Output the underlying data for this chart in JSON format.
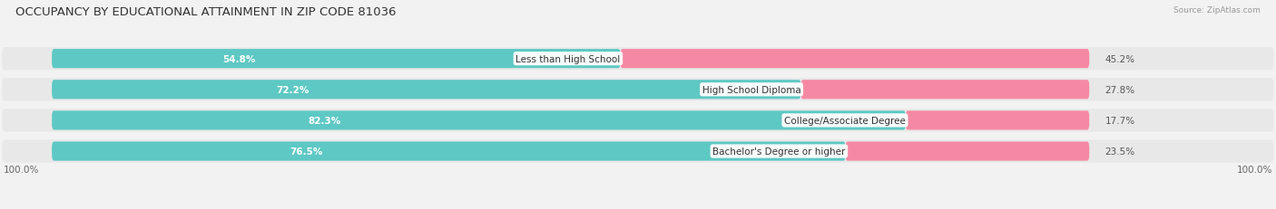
{
  "title": "OCCUPANCY BY EDUCATIONAL ATTAINMENT IN ZIP CODE 81036",
  "source": "Source: ZipAtlas.com",
  "categories": [
    "Less than High School",
    "High School Diploma",
    "College/Associate Degree",
    "Bachelor's Degree or higher"
  ],
  "owner_pct": [
    54.8,
    72.2,
    82.3,
    76.5
  ],
  "renter_pct": [
    45.2,
    27.8,
    17.7,
    23.5
  ],
  "owner_color": "#5ec8c4",
  "renter_color": "#f589a3",
  "bg_color": "#f2f2f2",
  "row_bg_color": "#e8e8e8",
  "title_fontsize": 9.5,
  "bar_label_fontsize": 7.5,
  "pct_label_fontsize": 7.5,
  "axis_label_fontsize": 7.5,
  "legend_fontsize": 7.5,
  "source_fontsize": 6.5
}
